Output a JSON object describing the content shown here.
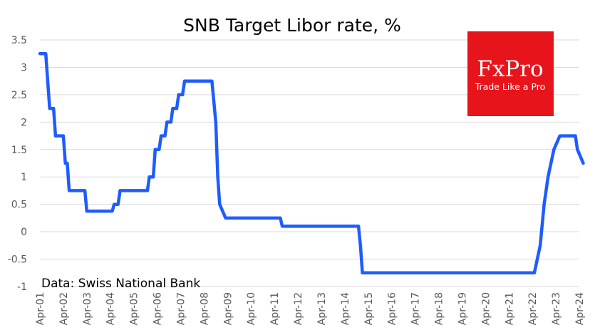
{
  "chart_data": {
    "type": "line",
    "title": "SNB Target Libor rate, %",
    "source_note": "Data: Swiss National Bank",
    "xlabel": "",
    "ylabel": "",
    "ylim": [
      -1,
      3.5
    ],
    "yticks": [
      "-1",
      "-0.5",
      "0",
      "0.5",
      "1",
      "1.5",
      "2",
      "2.5",
      "3",
      "3.5"
    ],
    "xticks": [
      "Apr-01",
      "Apr-02",
      "Apr-03",
      "Apr-04",
      "Apr-05",
      "Apr-06",
      "Apr-07",
      "Apr-08",
      "Apr-09",
      "Apr-10",
      "Apr-11",
      "Apr-12",
      "Apr-13",
      "Apr-14",
      "Apr-15",
      "Apr-16",
      "Apr-17",
      "Apr-18",
      "Apr-19",
      "Apr-20",
      "Apr-21",
      "Apr-22",
      "Apr-23",
      "Apr-24"
    ],
    "grid": "horizontal",
    "line_color": "#1f5cff",
    "series": [
      {
        "points": [
          [
            "2001-04",
            3.25
          ],
          [
            "2001-07",
            3.25
          ],
          [
            "2001-09",
            2.25
          ],
          [
            "2001-11",
            2.25
          ],
          [
            "2001-12",
            1.75
          ],
          [
            "2002-04",
            1.75
          ],
          [
            "2002-05",
            1.25
          ],
          [
            "2002-06",
            1.25
          ],
          [
            "2002-07",
            0.75
          ],
          [
            "2003-03",
            0.75
          ],
          [
            "2003-04",
            0.375
          ],
          [
            "2004-05",
            0.375
          ],
          [
            "2004-06",
            0.5
          ],
          [
            "2004-08",
            0.5
          ],
          [
            "2004-09",
            0.75
          ],
          [
            "2005-11",
            0.75
          ],
          [
            "2005-12",
            1.0
          ],
          [
            "2006-02",
            1.0
          ],
          [
            "2006-03",
            1.5
          ],
          [
            "2006-05",
            1.5
          ],
          [
            "2006-06",
            1.75
          ],
          [
            "2006-08",
            1.75
          ],
          [
            "2006-09",
            2.0
          ],
          [
            "2006-11",
            2.0
          ],
          [
            "2006-12",
            2.25
          ],
          [
            "2007-02",
            2.25
          ],
          [
            "2007-03",
            2.5
          ],
          [
            "2007-05",
            2.5
          ],
          [
            "2007-06",
            2.75
          ],
          [
            "2008-08",
            2.75
          ],
          [
            "2008-10",
            2.0
          ],
          [
            "2008-11",
            1.0
          ],
          [
            "2008-12",
            0.5
          ],
          [
            "2009-03",
            0.25
          ],
          [
            "2011-07",
            0.25
          ],
          [
            "2011-08",
            0.1
          ],
          [
            "2014-11",
            0.1
          ],
          [
            "2014-12",
            -0.25
          ],
          [
            "2015-01",
            -0.75
          ],
          [
            "2022-05",
            -0.75
          ],
          [
            "2022-08",
            -0.25
          ],
          [
            "2022-10",
            0.5
          ],
          [
            "2022-12",
            1.0
          ],
          [
            "2023-03",
            1.5
          ],
          [
            "2023-06",
            1.75
          ],
          [
            "2024-02",
            1.75
          ],
          [
            "2024-03",
            1.5
          ],
          [
            "2024-06",
            1.25
          ]
        ]
      }
    ]
  },
  "logo": {
    "brand": "FxPro",
    "tagline": "Trade Like a Pro",
    "background": "#e8141b"
  }
}
